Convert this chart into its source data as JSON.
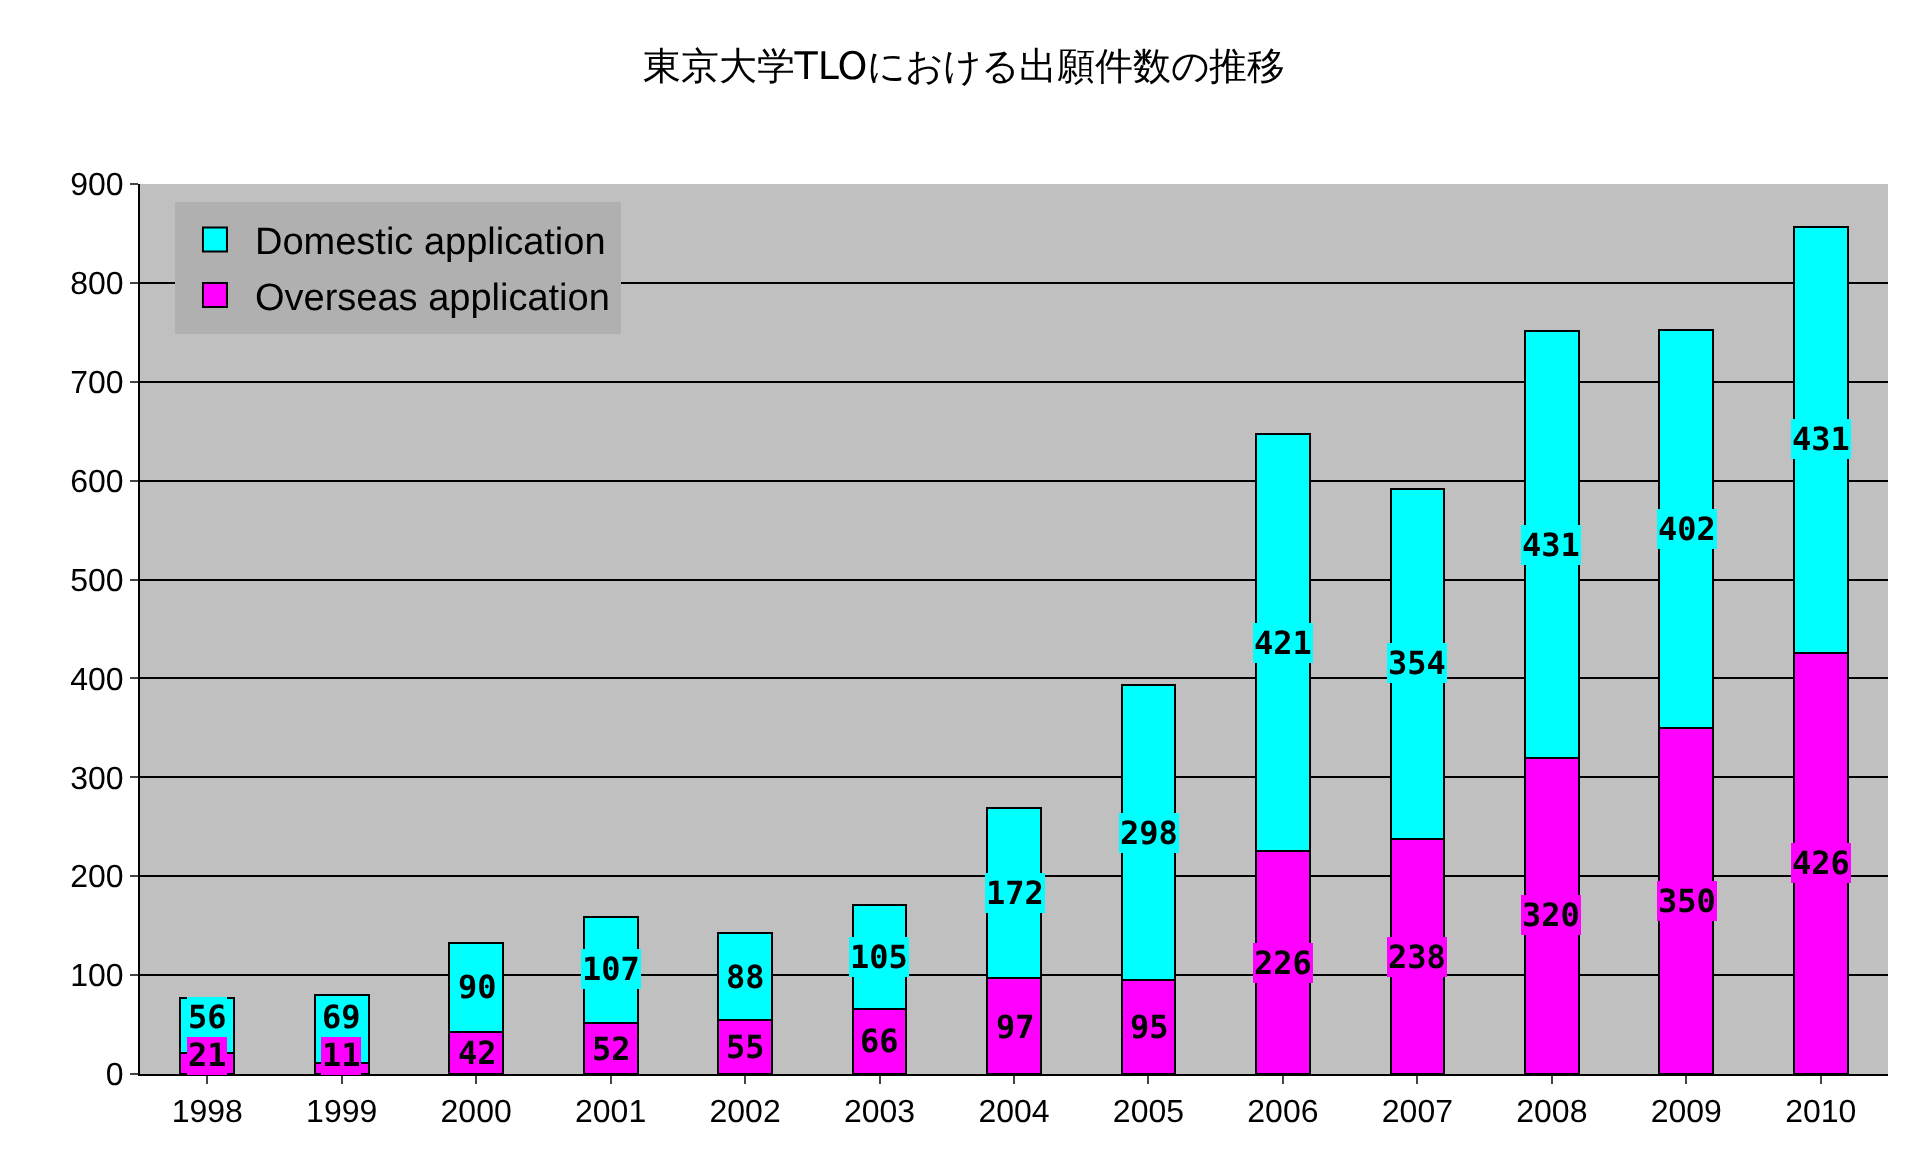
{
  "chart_data": {
    "type": "bar",
    "title": "東京大学TLOにおける出願件数の推移",
    "categories": [
      "1998",
      "1999",
      "2000",
      "2001",
      "2002",
      "2003",
      "2004",
      "2005",
      "2006",
      "2007",
      "2008",
      "2009",
      "2010"
    ],
    "series": [
      {
        "name": "Overseas application",
        "color": "#ff00ff",
        "values": [
          21,
          11,
          42,
          52,
          55,
          66,
          97,
          95,
          226,
          238,
          320,
          350,
          426
        ]
      },
      {
        "name": "Domestic application",
        "color": "#00ffff",
        "values": [
          56,
          69,
          90,
          107,
          88,
          105,
          172,
          298,
          421,
          354,
          431,
          402,
          431
        ]
      }
    ],
    "stacked": true,
    "data_labels": true,
    "ylim": [
      0,
      900
    ],
    "yticks": [
      0,
      100,
      200,
      300,
      400,
      500,
      600,
      700,
      800,
      900
    ],
    "grid": "y",
    "legend": "top left"
  }
}
